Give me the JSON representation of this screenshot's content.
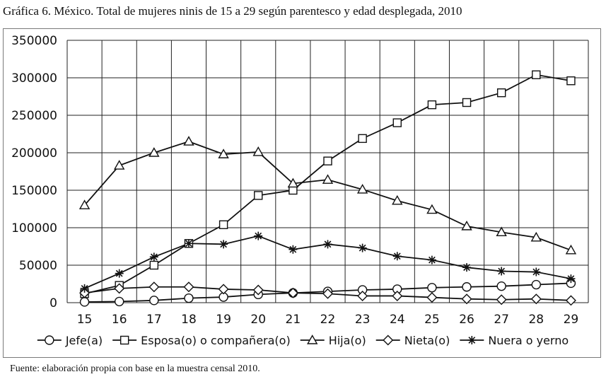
{
  "title": "Gráfica 6. México. Total de mujeres ninis de 15 a 29 según parentesco y edad desplegada, 2010",
  "source": "Fuente: elaboración propia con base en la muestra censal 2010.",
  "chart_data": {
    "type": "line",
    "title": "Gráfica 6. México. Total de mujeres ninis de 15 a 29 según parentesco y edad desplegada, 2010",
    "xlabel": "",
    "ylabel": "",
    "categories": [
      "15",
      "16",
      "17",
      "18",
      "19",
      "20",
      "21",
      "22",
      "23",
      "24",
      "25",
      "26",
      "27",
      "28",
      "29"
    ],
    "ylim": [
      0,
      350000
    ],
    "yticks": [
      "0",
      "50000",
      "100000",
      "150000",
      "200000",
      "250000",
      "300000",
      "350000"
    ],
    "grid": "horizontal and vertical",
    "legend_position": "bottom",
    "series": [
      {
        "name": "Jefe(a)",
        "marker": "circle",
        "values": [
          1000,
          1500,
          3000,
          6000,
          7500,
          11000,
          13000,
          15000,
          17000,
          18000,
          20000,
          21000,
          22000,
          24000,
          26000
        ]
      },
      {
        "name": "Esposa(o) o compañera(o)",
        "marker": "square",
        "values": [
          12000,
          23000,
          50000,
          79000,
          104000,
          143000,
          150000,
          189000,
          219000,
          240000,
          264000,
          267000,
          280000,
          304000,
          296000
        ]
      },
      {
        "name": "Hija(o)",
        "marker": "triangle",
        "values": [
          130000,
          183000,
          200000,
          215000,
          198000,
          201000,
          159000,
          164000,
          151000,
          136000,
          124000,
          102000,
          94000,
          87000,
          70000
        ]
      },
      {
        "name": "Nieta(o)",
        "marker": "diamond",
        "values": [
          13000,
          19000,
          21000,
          21000,
          18000,
          17000,
          13000,
          12000,
          9000,
          9000,
          7000,
          5000,
          4000,
          5000,
          3000
        ]
      },
      {
        "name": "Nuera o yerno",
        "marker": "asterisk",
        "values": [
          19000,
          39000,
          61000,
          79000,
          78000,
          89000,
          71000,
          78000,
          73000,
          62000,
          57000,
          47000,
          42000,
          41000,
          32000
        ]
      }
    ]
  }
}
